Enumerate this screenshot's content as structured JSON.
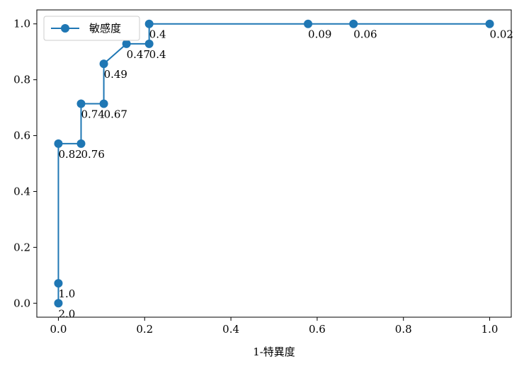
{
  "chart_data": {
    "type": "line",
    "title": "",
    "xlabel": "1-特異度",
    "ylabel": "",
    "xlim": [
      -0.05,
      1.05
    ],
    "ylim": [
      -0.05,
      1.05
    ],
    "x_ticks": [
      0.0,
      0.2,
      0.4,
      0.6,
      0.8,
      1.0
    ],
    "y_ticks": [
      0.0,
      0.2,
      0.4,
      0.6,
      0.8,
      1.0
    ],
    "x_tick_labels": [
      "0.0",
      "0.2",
      "0.4",
      "0.6",
      "0.8",
      "1.0"
    ],
    "y_tick_labels": [
      "0.0",
      "0.2",
      "0.4",
      "0.6",
      "0.8",
      "1.0"
    ],
    "grid": false,
    "legend_position": "top-left",
    "series": [
      {
        "name": "敏感度",
        "color": "#1f77b4",
        "x": [
          0.0,
          0.0,
          0.0,
          0.0526,
          0.0526,
          0.1053,
          0.1053,
          0.1579,
          0.2105,
          0.2105,
          0.5789,
          0.6842,
          1.0
        ],
        "y": [
          0.0,
          0.0714,
          0.5714,
          0.5714,
          0.7143,
          0.7143,
          0.8571,
          0.9286,
          0.9286,
          1.0,
          1.0,
          1.0,
          1.0
        ],
        "labels": [
          "2.0",
          "1.0",
          "0.82",
          "0.76",
          "0.74",
          "0.67",
          "0.49",
          "0.47",
          "0.4",
          "0.4",
          "0.09",
          "0.06",
          "0.02"
        ]
      }
    ]
  }
}
